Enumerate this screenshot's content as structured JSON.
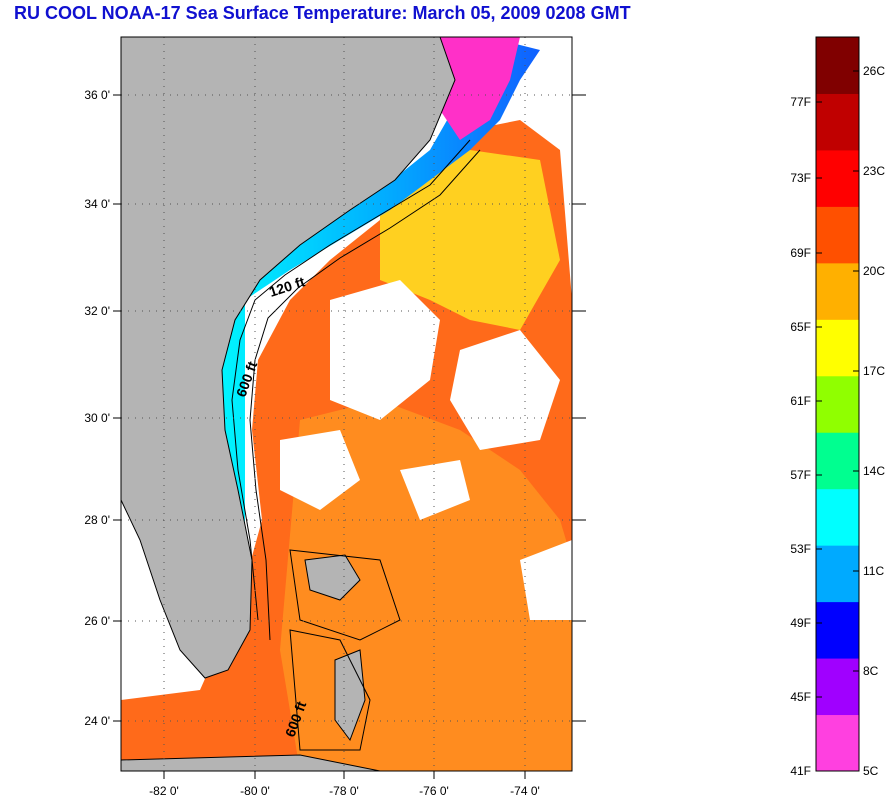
{
  "title": "RU COOL  NOAA-17  Sea Surface Temperature:  March 05, 2009 0208 GMT",
  "map": {
    "lat_labels": [
      "36 0'",
      "34 0'",
      "32 0'",
      "30 0'",
      "28 0'",
      "26 0'",
      "24 0'"
    ],
    "lon_labels": [
      "-82 0'",
      "-80 0'",
      "-78 0'",
      "-76 0'",
      "-74 0'"
    ],
    "contour_labels": [
      "120 ft",
      "600 ft",
      "600 ft"
    ],
    "colors": {
      "land": "#b4b4b4",
      "cloud": "#ffffff"
    }
  },
  "colorbar": {
    "fahrenheit_labels": [
      "77F",
      "73F",
      "69F",
      "65F",
      "61F",
      "57F",
      "53F",
      "49F",
      "45F",
      "41F"
    ],
    "celsius_labels": [
      "26C",
      "23C",
      "20C",
      "17C",
      "14C",
      "11C",
      "8C",
      "5C"
    ],
    "colors": [
      "#ff40e0",
      "#a000ff",
      "#0000ff",
      "#00aaff",
      "#00ffff",
      "#00ff90",
      "#90ff00",
      "#ffff00",
      "#ffb000",
      "#ff5000",
      "#ff0000",
      "#c00000",
      "#800000"
    ]
  }
}
